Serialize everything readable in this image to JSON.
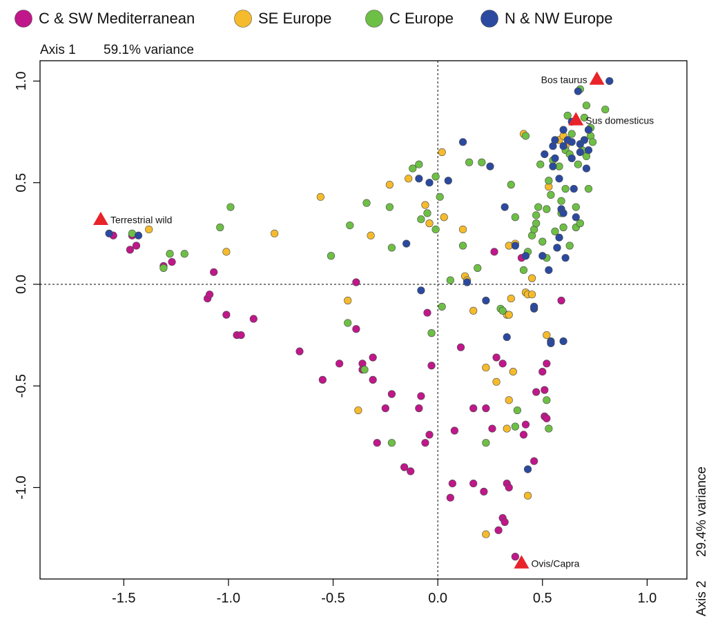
{
  "chart_data": {
    "type": "scatter",
    "axis1_title": "Axis 1",
    "axis1_variance": "59.1% variance",
    "axis2_title": "Axis 2",
    "axis2_variance": "29.4% variance",
    "xlim": [
      -1.9,
      1.19
    ],
    "ylim": [
      -1.45,
      1.1
    ],
    "grid": false,
    "legend_position": "top",
    "reference_lines": {
      "x": 0,
      "y": 0
    },
    "x_ticks": [
      {
        "value": -1.5,
        "label": "-1.5"
      },
      {
        "value": -1.0,
        "label": "-1.0"
      },
      {
        "value": -0.5,
        "label": "-0.5"
      },
      {
        "value": 0.0,
        "label": "0.0"
      },
      {
        "value": 0.5,
        "label": "0.5"
      },
      {
        "value": 1.0,
        "label": "1.0"
      }
    ],
    "y_ticks": [
      {
        "value": 1.0,
        "label": "1.0"
      },
      {
        "value": 0.5,
        "label": "0.5"
      },
      {
        "value": 0.0,
        "label": "0.0"
      },
      {
        "value": -0.5,
        "label": "-0.5"
      },
      {
        "value": -1.0,
        "label": "-1.0"
      }
    ],
    "series": [
      {
        "name": "C & SW Mediterranean",
        "color": "#c0178a",
        "points": [
          [
            -1.55,
            0.24
          ],
          [
            -1.47,
            0.17
          ],
          [
            -1.44,
            0.19
          ],
          [
            -1.46,
            0.24
          ],
          [
            -1.31,
            0.09
          ],
          [
            -1.27,
            0.11
          ],
          [
            -1.1,
            -0.07
          ],
          [
            -1.09,
            -0.05
          ],
          [
            -1.07,
            0.06
          ],
          [
            -1.01,
            -0.15
          ],
          [
            -0.96,
            -0.25
          ],
          [
            -0.94,
            -0.25
          ],
          [
            -0.88,
            -0.17
          ],
          [
            -0.66,
            -0.33
          ],
          [
            -0.55,
            -0.47
          ],
          [
            -0.47,
            -0.39
          ],
          [
            -0.39,
            0.01
          ],
          [
            -0.39,
            -0.22
          ],
          [
            -0.36,
            -0.39
          ],
          [
            -0.36,
            -0.42
          ],
          [
            -0.31,
            -0.36
          ],
          [
            -0.31,
            -0.47
          ],
          [
            -0.29,
            -0.78
          ],
          [
            -0.25,
            -0.61
          ],
          [
            -0.22,
            -0.54
          ],
          [
            -0.16,
            -0.9
          ],
          [
            -0.13,
            -0.92
          ],
          [
            -0.09,
            -0.61
          ],
          [
            -0.08,
            -0.55
          ],
          [
            -0.06,
            -0.78
          ],
          [
            -0.05,
            -0.14
          ],
          [
            -0.04,
            -0.74
          ],
          [
            -0.03,
            -0.4
          ],
          [
            0.06,
            -1.05
          ],
          [
            0.07,
            -0.98
          ],
          [
            0.08,
            -0.72
          ],
          [
            0.11,
            -0.31
          ],
          [
            0.17,
            -0.61
          ],
          [
            0.17,
            -0.98
          ],
          [
            0.22,
            -1.02
          ],
          [
            0.23,
            -0.61
          ],
          [
            0.26,
            -0.71
          ],
          [
            0.27,
            0.16
          ],
          [
            0.28,
            -0.36
          ],
          [
            0.29,
            -1.21
          ],
          [
            0.31,
            -1.15
          ],
          [
            0.31,
            -0.39
          ],
          [
            0.32,
            -1.17
          ],
          [
            0.33,
            -0.98
          ],
          [
            0.34,
            -1.0
          ],
          [
            0.37,
            -1.34
          ],
          [
            0.4,
            0.13
          ],
          [
            0.41,
            -0.74
          ],
          [
            0.42,
            -0.69
          ],
          [
            0.46,
            -0.87
          ],
          [
            0.47,
            -0.53
          ],
          [
            0.5,
            -0.43
          ],
          [
            0.51,
            -0.65
          ],
          [
            0.51,
            -0.52
          ],
          [
            0.52,
            -0.39
          ],
          [
            0.52,
            -0.66
          ],
          [
            0.59,
            -0.08
          ]
        ]
      },
      {
        "name": "SE Europe",
        "color": "#f5bb2c",
        "points": [
          [
            -1.38,
            0.27
          ],
          [
            -1.01,
            0.16
          ],
          [
            -0.78,
            0.25
          ],
          [
            -0.56,
            0.43
          ],
          [
            -0.43,
            -0.08
          ],
          [
            -0.38,
            -0.62
          ],
          [
            -0.32,
            0.24
          ],
          [
            -0.23,
            0.49
          ],
          [
            -0.14,
            0.52
          ],
          [
            -0.06,
            0.39
          ],
          [
            -0.04,
            0.3
          ],
          [
            0.02,
            0.65
          ],
          [
            0.03,
            0.33
          ],
          [
            0.12,
            0.27
          ],
          [
            0.13,
            0.04
          ],
          [
            0.14,
            0.02
          ],
          [
            0.17,
            -0.13
          ],
          [
            0.23,
            -0.41
          ],
          [
            0.23,
            -1.23
          ],
          [
            0.28,
            -0.48
          ],
          [
            0.33,
            -0.15
          ],
          [
            0.33,
            -0.71
          ],
          [
            0.34,
            0.19
          ],
          [
            0.34,
            -0.57
          ],
          [
            0.34,
            -0.15
          ],
          [
            0.35,
            -0.07
          ],
          [
            0.36,
            -0.43
          ],
          [
            0.37,
            0.2
          ],
          [
            0.41,
            0.74
          ],
          [
            0.42,
            -0.04
          ],
          [
            0.43,
            -0.05
          ],
          [
            0.43,
            -1.04
          ],
          [
            0.45,
            -0.05
          ],
          [
            0.45,
            0.03
          ],
          [
            0.52,
            -0.25
          ],
          [
            0.53,
            0.48
          ],
          [
            0.58,
            0.71
          ],
          [
            0.6,
            0.73
          ],
          [
            0.61,
            0.68
          ]
        ]
      },
      {
        "name": "C Europe",
        "color": "#6ebf45",
        "points": [
          [
            -1.46,
            0.25
          ],
          [
            -1.31,
            0.08
          ],
          [
            -1.28,
            0.15
          ],
          [
            -1.21,
            0.15
          ],
          [
            -1.04,
            0.28
          ],
          [
            -0.99,
            0.38
          ],
          [
            -0.51,
            0.14
          ],
          [
            -0.43,
            -0.19
          ],
          [
            -0.42,
            0.29
          ],
          [
            -0.35,
            -0.42
          ],
          [
            -0.34,
            0.4
          ],
          [
            -0.23,
            0.38
          ],
          [
            -0.22,
            0.18
          ],
          [
            -0.22,
            -0.78
          ],
          [
            -0.12,
            0.57
          ],
          [
            -0.09,
            0.59
          ],
          [
            -0.08,
            0.32
          ],
          [
            -0.05,
            0.35
          ],
          [
            -0.03,
            -0.24
          ],
          [
            -0.01,
            0.27
          ],
          [
            -0.01,
            0.53
          ],
          [
            0.01,
            0.43
          ],
          [
            0.02,
            -0.11
          ],
          [
            0.06,
            0.02
          ],
          [
            0.12,
            0.19
          ],
          [
            0.15,
            0.6
          ],
          [
            0.19,
            0.08
          ],
          [
            0.21,
            0.6
          ],
          [
            0.23,
            -0.78
          ],
          [
            0.3,
            -0.12
          ],
          [
            0.31,
            -0.13
          ],
          [
            0.35,
            0.49
          ],
          [
            0.37,
            -0.7
          ],
          [
            0.37,
            0.33
          ],
          [
            0.38,
            -0.62
          ],
          [
            0.41,
            0.07
          ],
          [
            0.42,
            0.73
          ],
          [
            0.43,
            0.16
          ],
          [
            0.45,
            0.24
          ],
          [
            0.46,
            0.27
          ],
          [
            0.47,
            0.3
          ],
          [
            0.47,
            0.34
          ],
          [
            0.48,
            0.38
          ],
          [
            0.49,
            0.59
          ],
          [
            0.5,
            0.21
          ],
          [
            0.52,
            0.13
          ],
          [
            0.52,
            -0.57
          ],
          [
            0.52,
            0.37
          ],
          [
            0.53,
            -0.71
          ],
          [
            0.53,
            0.51
          ],
          [
            0.54,
            0.44
          ],
          [
            0.55,
            0.61
          ],
          [
            0.56,
            0.26
          ],
          [
            0.57,
            0.18
          ],
          [
            0.58,
            0.58
          ],
          [
            0.59,
            0.35
          ],
          [
            0.59,
            0.41
          ],
          [
            0.6,
            0.28
          ],
          [
            0.61,
            0.47
          ],
          [
            0.61,
            0.66
          ],
          [
            0.62,
            0.83
          ],
          [
            0.63,
            0.64
          ],
          [
            0.63,
            0.19
          ],
          [
            0.64,
            0.74
          ],
          [
            0.66,
            0.38
          ],
          [
            0.66,
            0.28
          ],
          [
            0.67,
            0.59
          ],
          [
            0.68,
            0.3
          ],
          [
            0.69,
            0.66
          ],
          [
            0.71,
            0.88
          ],
          [
            0.71,
            0.63
          ],
          [
            0.72,
            0.47
          ],
          [
            0.73,
            0.73
          ],
          [
            0.73,
            0.77
          ],
          [
            0.74,
            0.7
          ],
          [
            0.8,
            0.86
          ],
          [
            0.68,
            0.96
          ],
          [
            0.7,
            0.82
          ]
        ]
      },
      {
        "name": "N & NW Europe",
        "color": "#2b4a9f",
        "points": [
          [
            -1.57,
            0.25
          ],
          [
            -1.43,
            0.24
          ],
          [
            -0.15,
            0.2
          ],
          [
            -0.09,
            0.52
          ],
          [
            -0.04,
            0.5
          ],
          [
            -0.08,
            -0.03
          ],
          [
            0.05,
            0.51
          ],
          [
            0.12,
            0.7
          ],
          [
            0.14,
            0.01
          ],
          [
            0.23,
            -0.08
          ],
          [
            0.25,
            0.58
          ],
          [
            0.32,
            0.38
          ],
          [
            0.33,
            -0.26
          ],
          [
            0.37,
            0.19
          ],
          [
            0.42,
            0.14
          ],
          [
            0.43,
            -0.91
          ],
          [
            0.46,
            -0.12
          ],
          [
            0.46,
            -0.11
          ],
          [
            0.5,
            0.14
          ],
          [
            0.51,
            0.64
          ],
          [
            0.53,
            0.07
          ],
          [
            0.54,
            -0.28
          ],
          [
            0.54,
            -0.29
          ],
          [
            0.55,
            0.68
          ],
          [
            0.55,
            0.58
          ],
          [
            0.56,
            0.62
          ],
          [
            0.57,
            0.18
          ],
          [
            0.58,
            0.23
          ],
          [
            0.58,
            0.52
          ],
          [
            0.59,
            0.37
          ],
          [
            0.6,
            0.76
          ],
          [
            0.6,
            0.35
          ],
          [
            0.6,
            0.68
          ],
          [
            0.6,
            -0.28
          ],
          [
            0.61,
            0.13
          ],
          [
            0.62,
            0.71
          ],
          [
            0.64,
            0.7
          ],
          [
            0.64,
            0.62
          ],
          [
            0.64,
            0.8
          ],
          [
            0.65,
            0.47
          ],
          [
            0.66,
            0.33
          ],
          [
            0.67,
            0.95
          ],
          [
            0.68,
            0.69
          ],
          [
            0.68,
            0.65
          ],
          [
            0.7,
            0.71
          ],
          [
            0.71,
            0.57
          ],
          [
            0.72,
            0.76
          ],
          [
            0.82,
            1.0
          ],
          [
            0.72,
            0.66
          ],
          [
            0.56,
            0.71
          ]
        ]
      }
    ],
    "reference_points": [
      {
        "label": "Bos taurus",
        "x": 0.76,
        "y": 1.01,
        "label_side": "left"
      },
      {
        "label": "Sus domesticus",
        "x": 0.66,
        "y": 0.81,
        "label_side": "right"
      },
      {
        "label": "Terrestrial wild",
        "x": -1.61,
        "y": 0.32,
        "label_side": "right"
      },
      {
        "label": "Ovis/Capra",
        "x": 0.4,
        "y": -1.37,
        "label_side": "right"
      }
    ],
    "reference_marker_color": "#e8232a"
  }
}
